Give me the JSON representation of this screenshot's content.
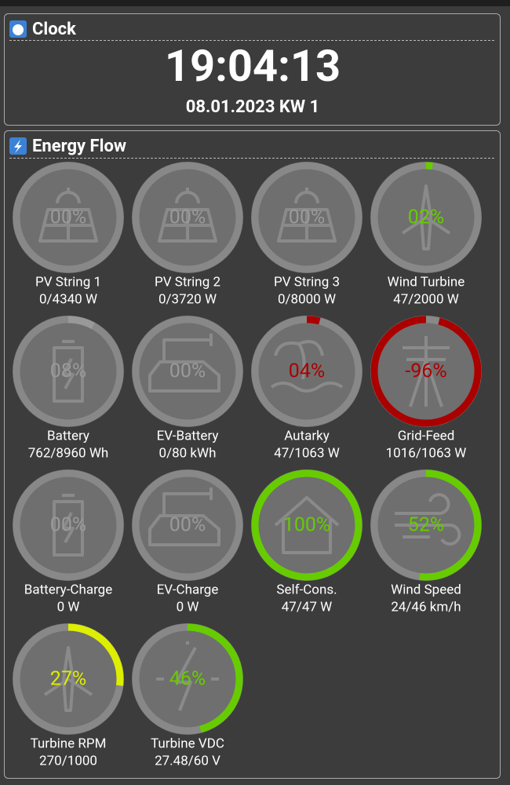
{
  "clock": {
    "title": "Clock",
    "time": "19:04:13",
    "date": "08.01.2023 KW 1"
  },
  "energy": {
    "title": "Energy Flow",
    "gauges": [
      {
        "label": "PV String 1",
        "reading": "0/4340 W",
        "percent": 0,
        "percent_label": "00%",
        "color": "#999999"
      },
      {
        "label": "PV String 2",
        "reading": "0/3720 W",
        "percent": 0,
        "percent_label": "00%",
        "color": "#999999"
      },
      {
        "label": "PV String 3",
        "reading": "0/8000 W",
        "percent": 0,
        "percent_label": "00%",
        "color": "#999999"
      },
      {
        "label": "Wind Turbine",
        "reading": "47/2000 W",
        "percent": 2,
        "percent_label": "02%",
        "color": "#66cc00"
      },
      {
        "label": "Battery",
        "reading": "762/8960 Wh",
        "percent": 8,
        "percent_label": "08%",
        "color": "#999999"
      },
      {
        "label": "EV-Battery",
        "reading": "0/80 kWh",
        "percent": 0,
        "percent_label": "00%",
        "color": "#999999"
      },
      {
        "label": "Autarky",
        "reading": "47/1063 W",
        "percent": 4,
        "percent_label": "04%",
        "color": "#aa0000"
      },
      {
        "label": "Grid-Feed",
        "reading": "1016/1063 W",
        "percent": -96,
        "percent_label": "-96%",
        "color": "#aa0000"
      },
      {
        "label": "Battery-Charge",
        "reading": "0 W",
        "percent": 0,
        "percent_label": "00%",
        "color": "#999999"
      },
      {
        "label": "EV-Charge",
        "reading": "0 W",
        "percent": 0,
        "percent_label": "00%",
        "color": "#999999"
      },
      {
        "label": "Self-Cons.",
        "reading": "47/47 W",
        "percent": 100,
        "percent_label": "100%",
        "color": "#66cc00"
      },
      {
        "label": "Wind Speed",
        "reading": "24/46 km/h",
        "percent": 52,
        "percent_label": "52%",
        "color": "#66cc00"
      },
      {
        "label": "Turbine RPM",
        "reading": "270/1000",
        "percent": 27,
        "percent_label": "27%",
        "color": "#ddee00"
      },
      {
        "label": "Turbine VDC",
        "reading": "27.48/60 V",
        "percent": 46,
        "percent_label": "46%",
        "color": "#66cc00"
      }
    ]
  }
}
